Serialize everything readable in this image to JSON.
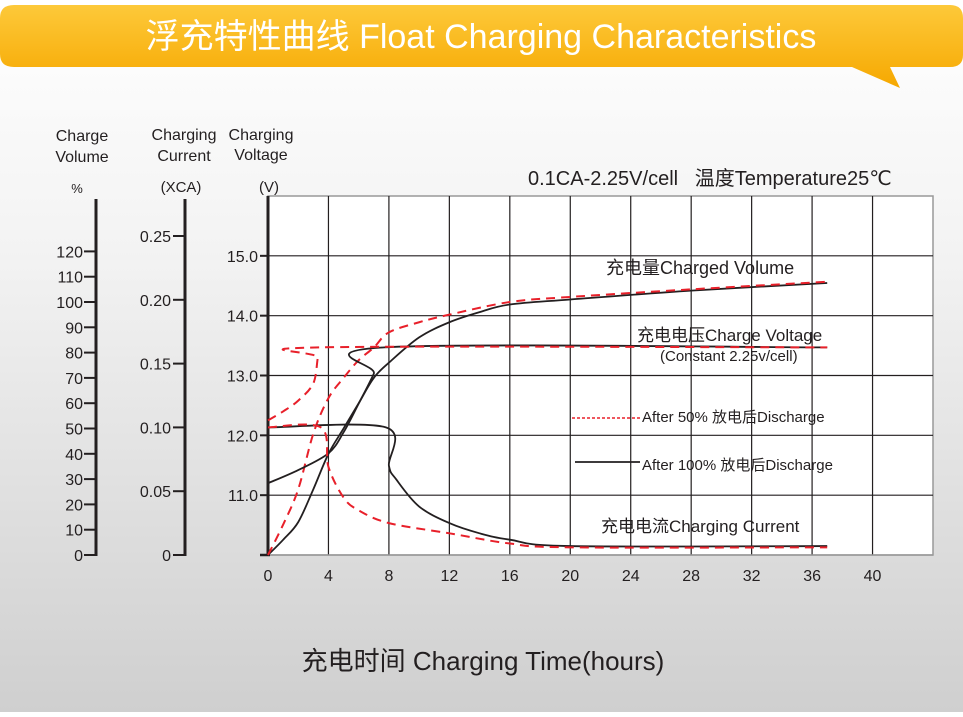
{
  "banner": {
    "title": "浮充特性曲线 Float Charging Characteristics"
  },
  "chart_data": {
    "type": "line",
    "title": "",
    "condition": "0.1CA-2.25V/cell   温度Temperature25℃",
    "xlabel": "充电时间 Charging Time(hours)",
    "xlim": [
      0,
      44
    ],
    "xticks": [
      "0",
      "4",
      "8",
      "12",
      "16",
      "20",
      "24",
      "28",
      "32",
      "36",
      "40"
    ],
    "grid": true,
    "axes": {
      "volume": {
        "label": [
          "Charge",
          "Volume"
        ],
        "unit": "%",
        "range": [
          0,
          140
        ],
        "ticks": [
          "0",
          "10",
          "20",
          "30",
          "40",
          "50",
          "60",
          "70",
          "80",
          "90",
          "100",
          "110",
          "120"
        ]
      },
      "current": {
        "label": [
          "Charging",
          "Current"
        ],
        "unit": "(XCA)",
        "range": [
          0,
          0.28
        ],
        "ticks": [
          "0",
          "0.05",
          "0.10",
          "0.15",
          "0.20",
          "0.25"
        ]
      },
      "voltage": {
        "label": [
          "Charging",
          "Voltage"
        ],
        "unit": "(V)",
        "range": [
          10,
          16
        ],
        "ticks": [
          "11.0",
          "12.0",
          "13.0",
          "14.0",
          "15.0"
        ]
      }
    },
    "annotations": {
      "volume": "充电量Charged Volume",
      "voltage": "充电电压Charge Voltage",
      "voltage_note": "(Constant 2.25v/cell)",
      "current": "充电电流Charging Current"
    },
    "legend": [
      {
        "name": "After 50% 放电后Discharge",
        "style": "dashed",
        "color": "#e8202a"
      },
      {
        "name": "After 100% 放电后Discharge",
        "style": "solid",
        "color": "#231f20"
      }
    ],
    "series": [
      {
        "group": "After 100% 放电后Discharge",
        "quantity": "volume",
        "axis": "volume",
        "style": "solid",
        "color": "#231f20",
        "points": [
          [
            0,
            0
          ],
          [
            1,
            6
          ],
          [
            2,
            13
          ],
          [
            3,
            26
          ],
          [
            4,
            40
          ],
          [
            5,
            50
          ],
          [
            6,
            60
          ],
          [
            7,
            70
          ],
          [
            8,
            76
          ],
          [
            10,
            86
          ],
          [
            12,
            92
          ],
          [
            14,
            96
          ],
          [
            16,
            99
          ],
          [
            20,
            101
          ],
          [
            28,
            104.5
          ],
          [
            37,
            107.5
          ]
        ]
      },
      {
        "group": "After 50% 放电后Discharge",
        "quantity": "volume",
        "axis": "volume",
        "style": "dashed",
        "color": "#e8202a",
        "points": [
          [
            0,
            0
          ],
          [
            1,
            12
          ],
          [
            2,
            26
          ],
          [
            3,
            48
          ],
          [
            4,
            62
          ],
          [
            5,
            70
          ],
          [
            6,
            77
          ],
          [
            7,
            82
          ],
          [
            8,
            88
          ],
          [
            10,
            92
          ],
          [
            12,
            95
          ],
          [
            16,
            100
          ],
          [
            20,
            102
          ],
          [
            28,
            105
          ],
          [
            37,
            108
          ]
        ]
      },
      {
        "group": "After 100% 放电后Discharge",
        "quantity": "voltage",
        "axis": "voltage",
        "style": "solid",
        "color": "#231f20",
        "points": [
          [
            0,
            11.2
          ],
          [
            2,
            11.42
          ],
          [
            4,
            11.7
          ],
          [
            5,
            12.05
          ],
          [
            6,
            12.53
          ],
          [
            7,
            13.03
          ],
          [
            7.7,
            13.47
          ],
          [
            37,
            13.47
          ]
        ]
      },
      {
        "group": "After 50% 放电后Discharge",
        "quantity": "voltage",
        "axis": "voltage",
        "style": "dashed",
        "color": "#e8202a",
        "points": [
          [
            0,
            12.25
          ],
          [
            1,
            12.4
          ],
          [
            2,
            12.58
          ],
          [
            3,
            12.87
          ],
          [
            3.3,
            13.3
          ],
          [
            3.5,
            13.47
          ],
          [
            37,
            13.47
          ]
        ]
      },
      {
        "group": "After 100% 放电后Discharge",
        "quantity": "current",
        "axis": "current",
        "style": "solid",
        "color": "#231f20",
        "points": [
          [
            0,
            0.1
          ],
          [
            7.8,
            0.1
          ],
          [
            8,
            0.07
          ],
          [
            8.5,
            0.059
          ],
          [
            10,
            0.038
          ],
          [
            12,
            0.025
          ],
          [
            14,
            0.017
          ],
          [
            16,
            0.012
          ],
          [
            20,
            0.007
          ],
          [
            37,
            0.007
          ]
        ]
      },
      {
        "group": "After 50% 放电后Discharge",
        "quantity": "current",
        "axis": "current",
        "style": "dashed",
        "color": "#e8202a",
        "points": [
          [
            0,
            0.1
          ],
          [
            3.5,
            0.1
          ],
          [
            4,
            0.069
          ],
          [
            5,
            0.045
          ],
          [
            6,
            0.035
          ],
          [
            8,
            0.025
          ],
          [
            12,
            0.017
          ],
          [
            16,
            0.009
          ],
          [
            20,
            0.006
          ],
          [
            37,
            0.006
          ]
        ]
      }
    ]
  }
}
